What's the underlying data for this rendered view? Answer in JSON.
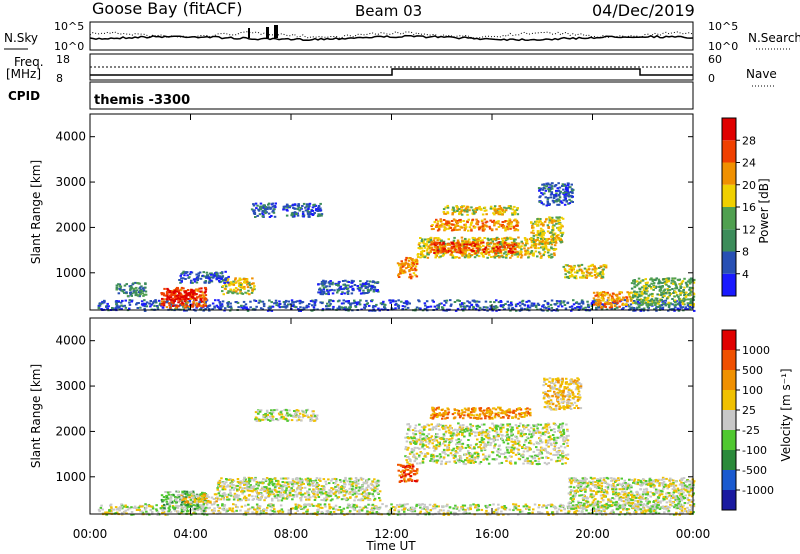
{
  "header": {
    "site": "Goose Bay (fitACF)",
    "beam": "Beam 03",
    "date": "04/Dec/2019"
  },
  "labels": {
    "nsky": "N.Sky",
    "nsearch": "N.Search",
    "freq_top": "Freq.",
    "freq_unit": "[MHz]",
    "nave": "Nave",
    "cpid": "CPID",
    "cpid_value": "themis -3300",
    "y_slant_power": "Slant Range [km]",
    "y_slant_vel": "Slant Range [km]",
    "x_axis": "Time UT"
  },
  "status_ticks": {
    "noise_left": [
      "10^5",
      "10^0"
    ],
    "noise_right": [
      "10^5",
      "10^0"
    ],
    "freq_left": [
      "18",
      "8"
    ],
    "nave_right": [
      "60",
      "0"
    ]
  },
  "chart_data": [
    {
      "type": "heatmap",
      "name": "Power",
      "colorbar_title": "Power [dB]",
      "colorbar_ticks": [
        "4",
        "8",
        "12",
        "16",
        "20",
        "24",
        "28"
      ],
      "colors": [
        "#1a1aff",
        "#2850b4",
        "#3c8c5a",
        "#50a050",
        "#f0d000",
        "#f09000",
        "#f04000",
        "#e00000"
      ],
      "x_range_hours": [
        0,
        24
      ],
      "x_tick_labels": [
        "00:00",
        "04:00",
        "08:00",
        "12:00",
        "16:00",
        "20:00",
        "00:00"
      ],
      "ylim_km": [
        180,
        4500
      ],
      "y_tick_labels": [
        "1000",
        "2000",
        "3000",
        "4000"
      ],
      "features": [
        {
          "t0": 0.3,
          "t1": 24,
          "r0": 180,
          "r1": 420,
          "level": 1
        },
        {
          "t0": 2.8,
          "t1": 4.6,
          "r0": 250,
          "r1": 700,
          "level": 6
        },
        {
          "t0": 3.0,
          "t1": 4.2,
          "r0": 400,
          "r1": 650,
          "level": 7
        },
        {
          "t0": 5.2,
          "t1": 6.5,
          "r0": 550,
          "r1": 900,
          "level": 4
        },
        {
          "t0": 3.5,
          "t1": 5.5,
          "r0": 800,
          "r1": 1050,
          "level": 1
        },
        {
          "t0": 1.0,
          "t1": 2.2,
          "r0": 500,
          "r1": 800,
          "level": 2
        },
        {
          "t0": 6.4,
          "t1": 7.4,
          "r0": 2250,
          "r1": 2550,
          "level": 1
        },
        {
          "t0": 7.6,
          "t1": 9.2,
          "r0": 2250,
          "r1": 2550,
          "level": 1
        },
        {
          "t0": 9.0,
          "t1": 11.5,
          "r0": 550,
          "r1": 850,
          "level": 1
        },
        {
          "t0": 12.2,
          "t1": 13.0,
          "r0": 900,
          "r1": 1350,
          "level": 5
        },
        {
          "t0": 13.0,
          "t1": 18.5,
          "r0": 1350,
          "r1": 1800,
          "level": 4
        },
        {
          "t0": 13.5,
          "t1": 17.0,
          "r0": 1450,
          "r1": 1700,
          "level": 6
        },
        {
          "t0": 13.5,
          "t1": 17.0,
          "r0": 1950,
          "r1": 2200,
          "level": 5
        },
        {
          "t0": 14.0,
          "t1": 17.0,
          "r0": 2300,
          "r1": 2500,
          "level": 4
        },
        {
          "t0": 17.5,
          "t1": 18.8,
          "r0": 1650,
          "r1": 2250,
          "level": 4
        },
        {
          "t0": 17.8,
          "t1": 19.2,
          "r0": 2500,
          "r1": 3000,
          "level": 1
        },
        {
          "t0": 18.8,
          "t1": 20.5,
          "r0": 900,
          "r1": 1200,
          "level": 4
        },
        {
          "t0": 20.0,
          "t1": 21.5,
          "r0": 250,
          "r1": 600,
          "level": 5
        },
        {
          "t0": 21.5,
          "t1": 24.0,
          "r0": 300,
          "r1": 900,
          "level": 3
        }
      ]
    },
    {
      "type": "heatmap",
      "name": "Velocity",
      "colorbar_title": "Velocity [m s⁻¹]",
      "colorbar_ticks": [
        "1000",
        "500",
        "100",
        "25",
        "-25",
        "-100",
        "-500",
        "-1000"
      ],
      "colors": [
        "#1a1aa0",
        "#1a5ad0",
        "#2a8a3a",
        "#50c830",
        "#c8c8c8",
        "#f0c000",
        "#f09000",
        "#f05000",
        "#e00000"
      ],
      "x_range_hours": [
        0,
        24
      ],
      "x_tick_labels": [
        "00:00",
        "04:00",
        "08:00",
        "12:00",
        "16:00",
        "20:00",
        "00:00"
      ],
      "ylim_km": [
        180,
        4500
      ],
      "y_tick_labels": [
        "1000",
        "2000",
        "3000",
        "4000"
      ],
      "features": [
        {
          "t0": 0.3,
          "t1": 24,
          "r0": 180,
          "r1": 420,
          "level": 4
        },
        {
          "t0": 2.8,
          "t1": 4.6,
          "r0": 250,
          "r1": 700,
          "level": 3
        },
        {
          "t0": 3.6,
          "t1": 5.0,
          "r0": 450,
          "r1": 650,
          "level": 5
        },
        {
          "t0": 5.0,
          "t1": 11.5,
          "r0": 500,
          "r1": 1000,
          "level": 4
        },
        {
          "t0": 6.5,
          "t1": 9.0,
          "r0": 2250,
          "r1": 2500,
          "level": 4
        },
        {
          "t0": 12.2,
          "t1": 13.0,
          "r0": 900,
          "r1": 1300,
          "level": 7
        },
        {
          "t0": 12.5,
          "t1": 19.0,
          "r0": 1300,
          "r1": 2200,
          "level": 4
        },
        {
          "t0": 13.5,
          "t1": 17.5,
          "r0": 2300,
          "r1": 2550,
          "level": 6
        },
        {
          "t0": 18.0,
          "t1": 19.5,
          "r0": 2500,
          "r1": 3200,
          "level": 5
        },
        {
          "t0": 19.0,
          "t1": 24.0,
          "r0": 300,
          "r1": 1000,
          "level": 4
        }
      ]
    }
  ]
}
